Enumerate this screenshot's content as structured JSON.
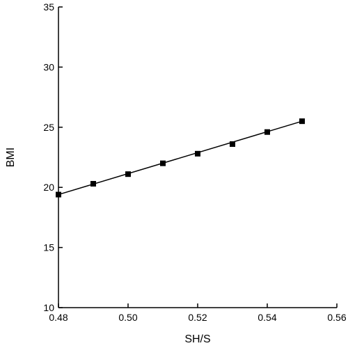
{
  "chart_data": {
    "type": "line",
    "title": "",
    "xlabel": "SH/S",
    "ylabel": "BMI",
    "xlim": [
      0.48,
      0.56
    ],
    "ylim": [
      10,
      35
    ],
    "xticks": [
      0.48,
      0.5,
      0.52,
      0.54,
      0.56
    ],
    "xtick_labels": [
      "0.48",
      "0.50",
      "0.52",
      "0.54",
      "0.56"
    ],
    "yticks": [
      10,
      15,
      20,
      25,
      30,
      35
    ],
    "ytick_labels": [
      "10",
      "15",
      "20",
      "25",
      "30",
      "35"
    ],
    "grid": false,
    "legend": "none",
    "series": [
      {
        "marker": "square",
        "color": "#000000",
        "x": [
          0.48,
          0.49,
          0.5,
          0.51,
          0.52,
          0.53,
          0.54,
          0.55
        ],
        "y": [
          19.4,
          20.3,
          21.1,
          22.0,
          22.8,
          23.6,
          24.6,
          25.5
        ]
      }
    ],
    "fit_line": {
      "x": [
        0.48,
        0.55
      ],
      "y": [
        19.4,
        25.5
      ]
    }
  }
}
